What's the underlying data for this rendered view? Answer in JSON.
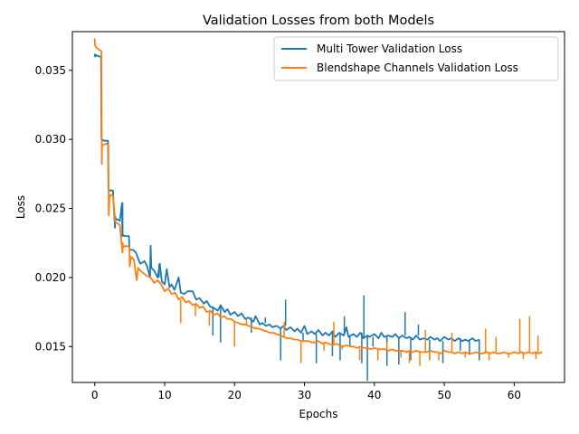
{
  "chart_data": {
    "type": "line",
    "title": "Validation Losses from both Models",
    "xlabel": "Epochs",
    "ylabel": "Loss",
    "xlim": [
      -3.2,
      67.2
    ],
    "ylim": [
      0.0124,
      0.0378
    ],
    "xticks": [
      0,
      10,
      20,
      30,
      40,
      50,
      60
    ],
    "xtick_labels": [
      "0",
      "10",
      "20",
      "30",
      "40",
      "50",
      "60"
    ],
    "yticks": [
      0.015,
      0.02,
      0.025,
      0.03,
      0.035
    ],
    "ytick_labels": [
      "0.015",
      "0.020",
      "0.025",
      "0.030",
      "0.035"
    ],
    "grid": false,
    "legend_position": "top-right",
    "series": [
      {
        "name": "Multi Tower Validation Loss",
        "color": "#1f77b4",
        "x": [
          0,
          0.05,
          0.3,
          0.6,
          0.9,
          0.95,
          1.05,
          1.3,
          1.6,
          1.9,
          1.95,
          2.05,
          2.3,
          2.6,
          2.9,
          2.95,
          3.05,
          3.3,
          3.6,
          3.9,
          3.95,
          4.05,
          4.2,
          4.5,
          4.9,
          4.95,
          5.1,
          5.5,
          5.9,
          6.1,
          6.5,
          6.9,
          7.1,
          7.5,
          7.9,
          8.0,
          8.1,
          8.5,
          9.0,
          9.3,
          9.6,
          10.0,
          10.3,
          10.7,
          11.0,
          11.4,
          12.0,
          12.3,
          12.8,
          13.3,
          14.0,
          14.5,
          15.0,
          15.6,
          16.0,
          16.5,
          17.0,
          17.6,
          18.0,
          18.6,
          19.0,
          19.4,
          20.0,
          20.5,
          21.0,
          21.5,
          22.0,
          22.7,
          23.0,
          23.6,
          24.0,
          24.5,
          25.0,
          25.4,
          26.0,
          26.6,
          27.0,
          27.4,
          28.0,
          28.6,
          29.0,
          29.5,
          30.0,
          30.4,
          31.0,
          31.5,
          32.0,
          32.6,
          33.0,
          33.5,
          34.0,
          34.4,
          35.0,
          35.6,
          36.0,
          36.3,
          37.0,
          37.5,
          38.0,
          38.4,
          39.0,
          39.3,
          40.0,
          40.6,
          41.0,
          41.4,
          42.0,
          42.6,
          43.0,
          43.5,
          44.0,
          44.6,
          45.0,
          45.5,
          46.0,
          46.5,
          47.0,
          47.6,
          48.0,
          48.6,
          49.0,
          49.4,
          50.0,
          50.6,
          51.0,
          51.5,
          52.0,
          52.6,
          53.0,
          53.4,
          54.0,
          54.5,
          55.0
        ],
        "y": [
          0.0362,
          0.036,
          0.0361,
          0.036,
          0.036,
          0.0301,
          0.03,
          0.0299,
          0.0299,
          0.0299,
          0.0265,
          0.0263,
          0.0263,
          0.0263,
          0.0236,
          0.0244,
          0.0242,
          0.0242,
          0.0241,
          0.0254,
          0.023,
          0.0231,
          0.023,
          0.023,
          0.023,
          0.0221,
          0.022,
          0.022,
          0.0218,
          0.0215,
          0.021,
          0.0211,
          0.0212,
          0.0208,
          0.02,
          0.0223,
          0.0207,
          0.0205,
          0.02,
          0.021,
          0.0197,
          0.0195,
          0.0206,
          0.0193,
          0.0195,
          0.0191,
          0.02,
          0.0189,
          0.0188,
          0.019,
          0.019,
          0.0184,
          0.0185,
          0.0181,
          0.0183,
          0.0179,
          0.0178,
          0.0176,
          0.018,
          0.0175,
          0.0177,
          0.0173,
          0.0175,
          0.0172,
          0.0174,
          0.017,
          0.0171,
          0.0168,
          0.0172,
          0.0166,
          0.0167,
          0.0165,
          0.0166,
          0.0164,
          0.0165,
          0.0163,
          0.0165,
          0.0162,
          0.0164,
          0.0161,
          0.0163,
          0.016,
          0.0165,
          0.0159,
          0.0161,
          0.0159,
          0.0162,
          0.0158,
          0.016,
          0.0158,
          0.0161,
          0.0157,
          0.016,
          0.0158,
          0.0164,
          0.0157,
          0.0159,
          0.0157,
          0.016,
          0.0156,
          0.0158,
          0.0157,
          0.0159,
          0.0156,
          0.016,
          0.0157,
          0.0158,
          0.0157,
          0.0159,
          0.0156,
          0.0158,
          0.0156,
          0.0157,
          0.0155,
          0.0158,
          0.0155,
          0.0156,
          0.0155,
          0.0157,
          0.0155,
          0.0156,
          0.0154,
          0.0157,
          0.0155,
          0.0156,
          0.0154,
          0.0156,
          0.0154,
          0.0155,
          0.0154,
          0.0156,
          0.0154,
          0.0155
        ],
        "spikes": [
          [
            4.0,
            0.0254
          ],
          [
            8.0,
            0.0223
          ],
          [
            9.2,
            0.021
          ],
          [
            12.2,
            0.02
          ],
          [
            16.9,
            0.0158
          ],
          [
            18.0,
            0.0153
          ],
          [
            22.4,
            0.016
          ],
          [
            24.4,
            0.0171
          ],
          [
            26.6,
            0.014
          ],
          [
            27.3,
            0.0184
          ],
          [
            29.8,
            0.0154
          ],
          [
            31.7,
            0.0138
          ],
          [
            34.0,
            0.0143
          ],
          [
            35.1,
            0.014
          ],
          [
            35.7,
            0.0172
          ],
          [
            36.5,
            0.015
          ],
          [
            38.2,
            0.0138
          ],
          [
            38.5,
            0.0187
          ],
          [
            39.0,
            0.0125
          ],
          [
            39.8,
            0.015
          ],
          [
            41.8,
            0.0136
          ],
          [
            43.5,
            0.0137
          ],
          [
            44.4,
            0.0175
          ],
          [
            45.2,
            0.014
          ],
          [
            46.3,
            0.0166
          ],
          [
            47.9,
            0.0141
          ],
          [
            49.8,
            0.0138
          ],
          [
            52.3,
            0.0147
          ],
          [
            53.6,
            0.0144
          ],
          [
            55.0,
            0.014
          ]
        ]
      },
      {
        "name": "Blendshape Channels Validation Loss",
        "color": "#ff7f0e",
        "x": [
          0,
          0.05,
          0.3,
          0.6,
          0.95,
          1.0,
          1.05,
          1.3,
          1.6,
          1.95,
          2.0,
          2.1,
          2.3,
          2.6,
          2.95,
          3.0,
          3.3,
          3.6,
          3.95,
          4.0,
          4.1,
          4.5,
          4.95,
          5.0,
          5.2,
          5.6,
          6.0,
          6.2,
          6.5,
          7.0,
          7.5,
          8.0,
          8.5,
          9.0,
          9.5,
          10.0,
          10.5,
          11.0,
          11.5,
          12.0,
          12.5,
          13.0,
          13.5,
          14.0,
          14.5,
          15.0,
          15.5,
          16.0,
          16.5,
          17.0,
          17.6,
          18.0,
          18.5,
          19.0,
          19.5,
          20.0,
          20.6,
          21.0,
          21.5,
          22.0,
          22.6,
          23.0,
          23.5,
          24.0,
          24.6,
          25.0,
          25.5,
          26.0,
          26.6,
          27.0,
          27.5,
          28.0,
          28.6,
          29.0,
          29.5,
          30.0,
          30.6,
          31.0,
          31.5,
          32.0,
          32.6,
          33.0,
          33.5,
          34.0,
          34.6,
          35.0,
          35.5,
          36.0,
          36.6,
          37.0,
          37.5,
          38.0,
          38.6,
          39.0,
          39.5,
          40.0,
          40.6,
          41.0,
          41.5,
          42.0,
          42.6,
          43.0,
          43.5,
          44.0,
          44.6,
          45.0,
          45.5,
          46.0,
          46.6,
          47.0,
          47.5,
          48.0,
          48.6,
          49.0,
          49.5,
          50.0,
          50.6,
          51.0,
          51.5,
          52.0,
          52.6,
          53.0,
          53.5,
          54.0,
          54.6,
          55.0,
          55.5,
          56.0,
          56.6,
          57.0,
          57.5,
          58.0,
          58.6,
          59.0,
          59.5,
          60.0,
          60.6,
          61.0,
          61.5,
          62.0,
          62.6,
          63.0,
          63.5,
          64.0
        ],
        "y": [
          0.0373,
          0.0368,
          0.0366,
          0.0365,
          0.0364,
          0.0282,
          0.0296,
          0.0296,
          0.0297,
          0.0296,
          0.0245,
          0.0258,
          0.026,
          0.0259,
          0.024,
          0.024,
          0.0239,
          0.0238,
          0.0218,
          0.0225,
          0.0222,
          0.0223,
          0.0222,
          0.0208,
          0.0215,
          0.0213,
          0.0198,
          0.0207,
          0.0205,
          0.0203,
          0.0201,
          0.02,
          0.0196,
          0.0198,
          0.0195,
          0.019,
          0.0192,
          0.0188,
          0.0189,
          0.0184,
          0.0186,
          0.0182,
          0.0183,
          0.018,
          0.0181,
          0.0178,
          0.0179,
          0.0175,
          0.0176,
          0.0173,
          0.0174,
          0.0171,
          0.0172,
          0.017,
          0.017,
          0.0168,
          0.0167,
          0.0166,
          0.0166,
          0.0165,
          0.0164,
          0.0163,
          0.0163,
          0.0162,
          0.0161,
          0.016,
          0.016,
          0.0159,
          0.0158,
          0.0157,
          0.0156,
          0.0156,
          0.0155,
          0.0155,
          0.0154,
          0.0154,
          0.0154,
          0.0153,
          0.0153,
          0.0154,
          0.0152,
          0.0153,
          0.0152,
          0.0151,
          0.0152,
          0.0151,
          0.015,
          0.0151,
          0.015,
          0.015,
          0.0149,
          0.015,
          0.0149,
          0.0149,
          0.0148,
          0.0149,
          0.0148,
          0.0148,
          0.0148,
          0.0147,
          0.0148,
          0.0147,
          0.0147,
          0.0147,
          0.0146,
          0.0147,
          0.0146,
          0.0147,
          0.0146,
          0.0146,
          0.0146,
          0.0147,
          0.0146,
          0.0146,
          0.0145,
          0.0147,
          0.0146,
          0.0146,
          0.0145,
          0.0146,
          0.0145,
          0.0146,
          0.0145,
          0.0145,
          0.0146,
          0.0145,
          0.0145,
          0.0146,
          0.0145,
          0.0146,
          0.0145,
          0.0145,
          0.0146,
          0.0145,
          0.0145,
          0.0146,
          0.0145,
          0.0146,
          0.0145,
          0.0146,
          0.0145,
          0.0146,
          0.0145,
          0.0146
        ],
        "spikes": [
          [
            1.0,
            0.0282
          ],
          [
            2.0,
            0.0245
          ],
          [
            4.0,
            0.0218
          ],
          [
            6.1,
            0.0198
          ],
          [
            12.3,
            0.0167
          ],
          [
            14.4,
            0.0172
          ],
          [
            16.4,
            0.0165
          ],
          [
            19.4,
            0.017
          ],
          [
            20.0,
            0.015
          ],
          [
            21.7,
            0.017
          ],
          [
            27.1,
            0.0168
          ],
          [
            29.5,
            0.0138
          ],
          [
            32.8,
            0.0147
          ],
          [
            34.2,
            0.0168
          ],
          [
            35.4,
            0.0148
          ],
          [
            37.9,
            0.014
          ],
          [
            40.5,
            0.014
          ],
          [
            41.8,
            0.0153
          ],
          [
            42.5,
            0.0147
          ],
          [
            43.8,
            0.0142
          ],
          [
            45.0,
            0.0138
          ],
          [
            46.5,
            0.0136
          ],
          [
            47.3,
            0.0162
          ],
          [
            47.9,
            0.014
          ],
          [
            49.2,
            0.014
          ],
          [
            51.1,
            0.016
          ],
          [
            53.0,
            0.0142
          ],
          [
            55.9,
            0.0163
          ],
          [
            56.4,
            0.014
          ],
          [
            57.4,
            0.0157
          ],
          [
            59.2,
            0.0142
          ],
          [
            60.8,
            0.017
          ],
          [
            61.3,
            0.0141
          ],
          [
            62.2,
            0.0172
          ],
          [
            63.1,
            0.0141
          ],
          [
            63.4,
            0.0158
          ]
        ]
      }
    ]
  }
}
